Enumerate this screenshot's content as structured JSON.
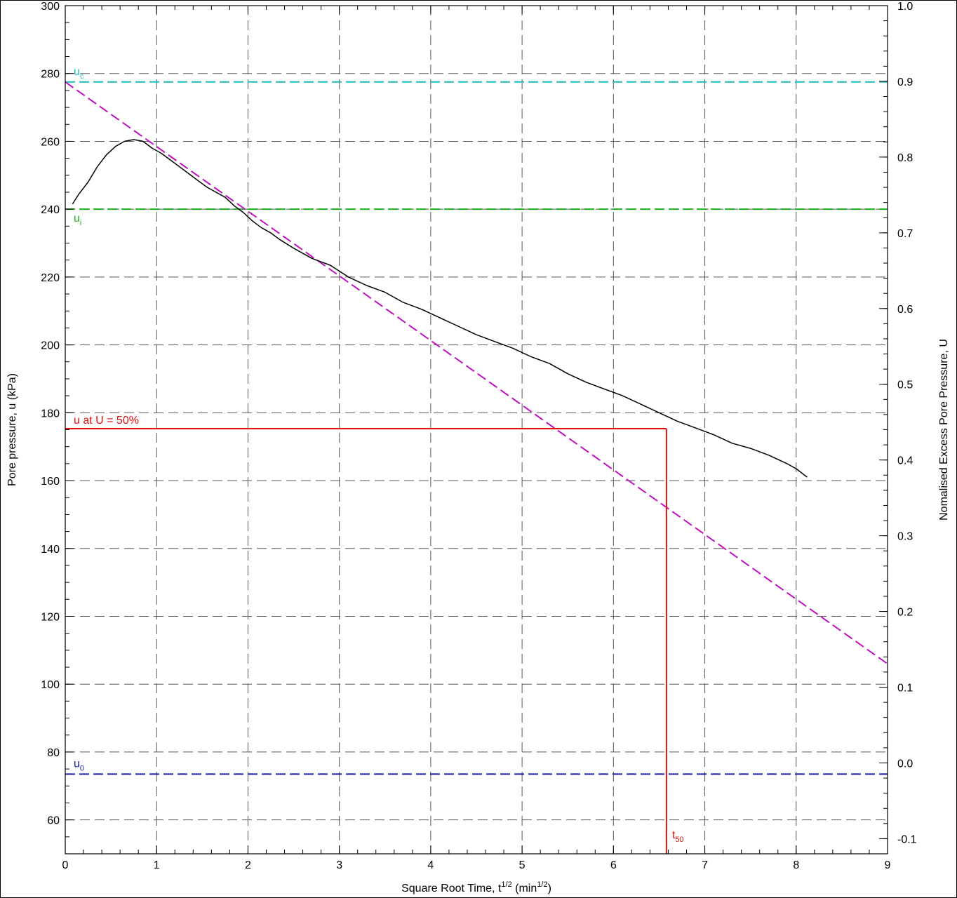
{
  "chart_data": {
    "type": "line",
    "xlabel": "Square Root Time, t",
    "xlabel_sup1": "1/2",
    "xlabel_mid": " (min",
    "xlabel_sup2": "1/2",
    "xlabel_end": ")",
    "ylabel": "Pore pressure, u (kPa)",
    "y2label": "Nomalised Excess Pore Pressure, U",
    "xlim": [
      0,
      9
    ],
    "ylim": [
      50,
      300
    ],
    "y2lim": [
      -0.12,
      1.0
    ],
    "x_ticks": [
      0,
      1,
      2,
      3,
      4,
      5,
      6,
      7,
      8,
      9
    ],
    "x_tick_labels": [
      "0",
      "1",
      "2",
      "3",
      "4",
      "5",
      "6",
      "7",
      "8",
      "9"
    ],
    "y_ticks": [
      60,
      80,
      100,
      120,
      140,
      160,
      180,
      200,
      220,
      240,
      260,
      280,
      300
    ],
    "y_tick_labels": [
      "60",
      "80",
      "100",
      "120",
      "140",
      "160",
      "180",
      "200",
      "220",
      "240",
      "260",
      "280",
      "300"
    ],
    "y2_ticks": [
      -0.1,
      0.0,
      0.1,
      0.2,
      0.3,
      0.4,
      0.5,
      0.6,
      0.7,
      0.8,
      0.9,
      1.0
    ],
    "y2_tick_labels": [
      "-0.1",
      "0.0",
      "0.1",
      "0.2",
      "0.3",
      "0.4",
      "0.5",
      "0.6",
      "0.7",
      "0.8",
      "0.9",
      "1.0"
    ],
    "grid": true,
    "reference_lines": {
      "u_c": {
        "value": 277.5,
        "label_main": "u",
        "label_sub": "c",
        "color": "#1fbcbc"
      },
      "u_i": {
        "value": 240.0,
        "label_main": "u",
        "label_sub": "i",
        "color": "#1db01d"
      },
      "u_0": {
        "value": 73.5,
        "label_main": "u",
        "label_sub": "0",
        "color": "#1a1aa8"
      },
      "u_50": {
        "value": 175.3,
        "x_end": 6.58,
        "label": "u at U = 50%",
        "color": "#e01010"
      }
    },
    "t50": {
      "x": 6.58,
      "label_main": "t",
      "label_sub": "50",
      "color": "#e01010"
    },
    "fit_line": {
      "x": [
        0,
        9
      ],
      "y": [
        277.5,
        106.0
      ],
      "color": "#c010c0"
    },
    "series": [
      {
        "color": "#000000",
        "x": [
          0.08,
          0.15,
          0.25,
          0.35,
          0.45,
          0.55,
          0.65,
          0.75,
          0.85,
          0.95,
          1.05,
          1.15,
          1.25,
          1.35,
          1.45,
          1.55,
          1.65,
          1.75,
          1.85,
          1.95,
          2.05,
          2.15,
          2.25,
          2.35,
          2.5,
          2.7,
          2.9,
          3.1,
          3.3,
          3.5,
          3.7,
          3.9,
          4.1,
          4.3,
          4.5,
          4.7,
          4.9,
          5.1,
          5.3,
          5.5,
          5.7,
          5.9,
          6.1,
          6.3,
          6.5,
          6.7,
          6.9,
          7.1,
          7.3,
          7.5,
          7.7,
          7.9,
          8.0,
          8.12
        ],
        "y": [
          241.5,
          244.5,
          248.0,
          252.5,
          256.0,
          258.5,
          260.0,
          260.5,
          260.0,
          258.0,
          256.5,
          254.5,
          252.5,
          250.5,
          248.5,
          246.5,
          245.0,
          243.5,
          241.0,
          239.0,
          236.5,
          234.5,
          233.0,
          231.0,
          228.5,
          225.5,
          223.5,
          220.0,
          217.5,
          215.5,
          212.5,
          210.5,
          208.0,
          205.5,
          203.0,
          201.0,
          199.0,
          196.5,
          194.5,
          191.5,
          189.0,
          187.0,
          185.0,
          182.5,
          180.0,
          177.5,
          175.5,
          173.5,
          171.0,
          169.5,
          167.5,
          165.0,
          163.5,
          161.0
        ]
      }
    ]
  }
}
